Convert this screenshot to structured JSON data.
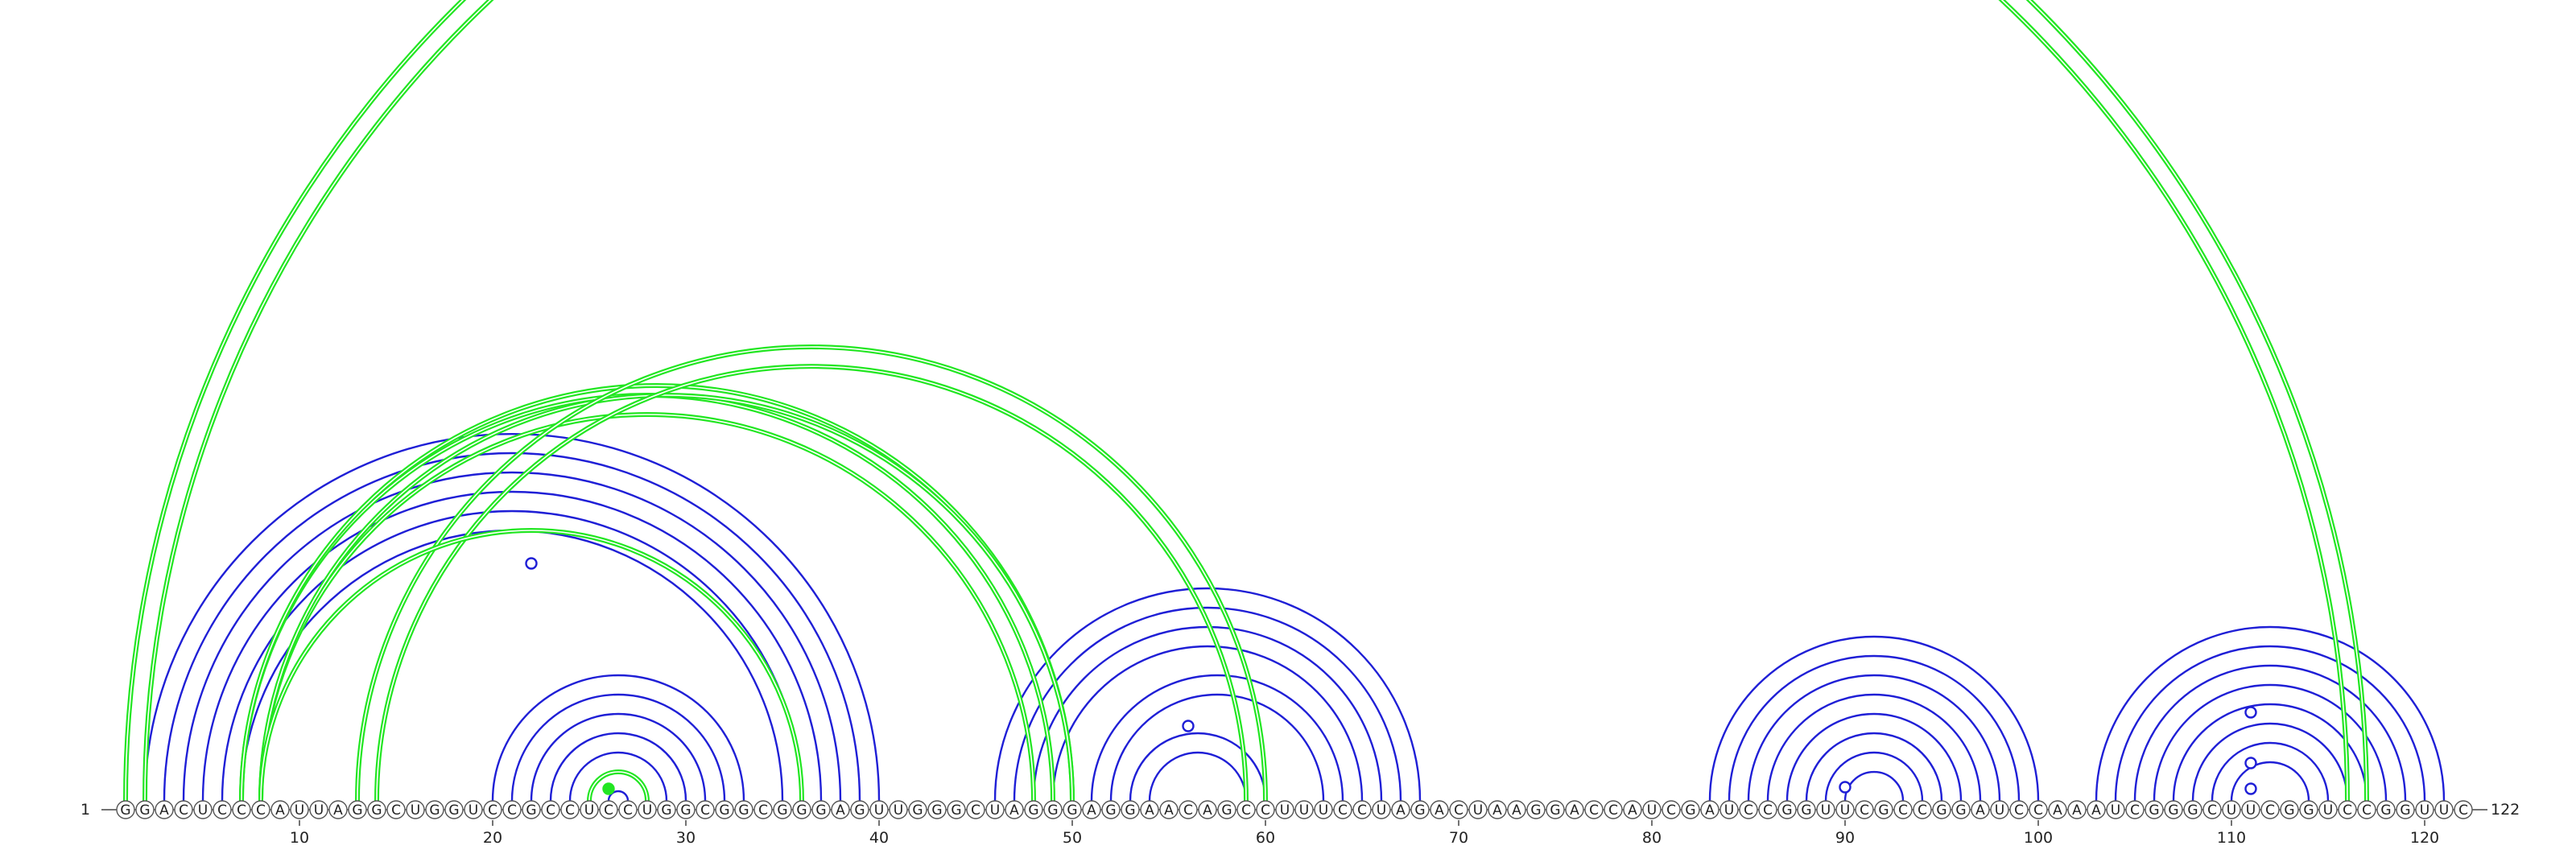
{
  "diagram": {
    "sequence": "GGACUCCCAUUAGGCUGGUCCGCCUCCUGGCGGCGGGAGUUGGGCUAGGGAGGAACAGCCUUUCCUAGACUAAGGACCAUCGAUCCGGUUCGCCGGAUCCAAAUCGGGCUUCGGUCCGGUUC",
    "start_label": "1",
    "end_label": "122",
    "tick_labels": [
      "10",
      "20",
      "30",
      "40",
      "50",
      "60",
      "70",
      "80",
      "90",
      "100",
      "110",
      "120"
    ],
    "colors": {
      "blue": "#1f1fd6",
      "green": "#22e622",
      "node_stroke": "#555555"
    },
    "blue_helices": [
      {
        "i": 2,
        "j": 40,
        "len": 1
      },
      {
        "i": 3,
        "j": 39,
        "len": 1
      },
      {
        "i": 4,
        "j": 38,
        "len": 1
      },
      {
        "i": 5,
        "j": 37,
        "len": 1
      },
      {
        "i": 6,
        "j": 36,
        "len": 1
      },
      {
        "i": 7,
        "j": 35,
        "len": 1
      },
      {
        "i": 20,
        "j": 33,
        "len": 7
      },
      {
        "i": 46,
        "j": 68,
        "len": 4
      },
      {
        "i": 51,
        "j": 64,
        "len": 2
      },
      {
        "i": 53,
        "j": 60,
        "len": 2
      },
      {
        "i": 83,
        "j": 100,
        "len": 8
      },
      {
        "i": 103,
        "j": 121,
        "len": 8
      }
    ],
    "green_pairs": [
      {
        "i": 1,
        "j": 117
      },
      {
        "i": 2,
        "j": 116
      },
      {
        "i": 7,
        "j": 49
      },
      {
        "i": 8,
        "j": 48
      },
      {
        "i": 7,
        "j": 50
      },
      {
        "i": 8,
        "j": 50
      },
      {
        "i": 13,
        "j": 60
      },
      {
        "i": 14,
        "j": 59
      },
      {
        "i": 8,
        "j": 36
      },
      {
        "i": 25,
        "j": 28
      }
    ],
    "markers": [
      {
        "i": 22,
        "type": "open"
      },
      {
        "i": 56,
        "type": "open"
      },
      {
        "i": 90,
        "type": "open"
      },
      {
        "i": 111,
        "type": "open"
      },
      {
        "i": 111,
        "type": "open",
        "level": 2
      },
      {
        "i": 111,
        "type": "open",
        "level": 3
      },
      {
        "i": 26,
        "type": "filled"
      }
    ]
  }
}
